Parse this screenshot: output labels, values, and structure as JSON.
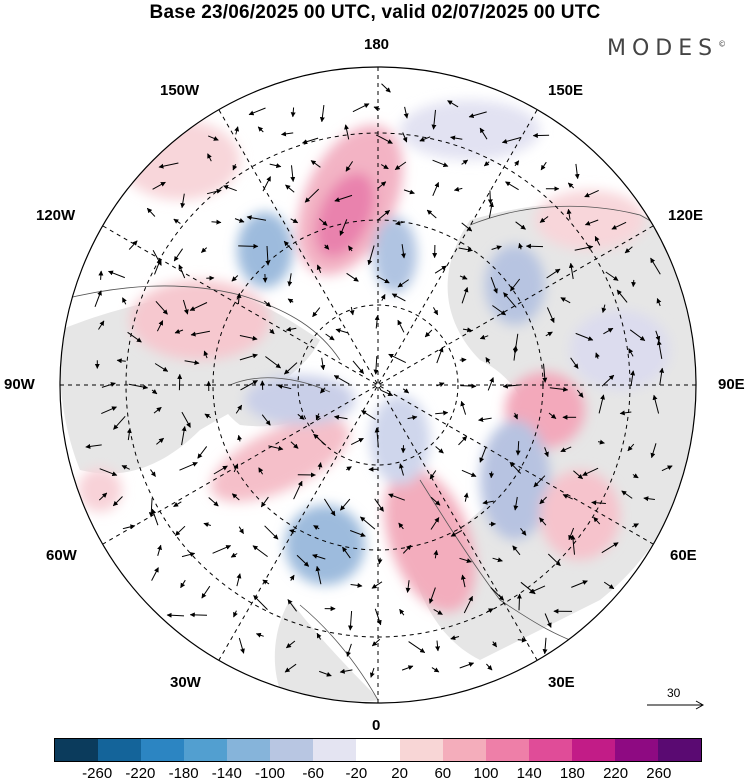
{
  "title": "Base 23/06/2025 00 UTC, valid 02/07/2025 00 UTC",
  "brand": "MODES",
  "brand_mark": "©",
  "longitude_labels": [
    "180",
    "150E",
    "120E",
    "90E",
    "60E",
    "30E",
    "0",
    "30W",
    "60W",
    "90W",
    "120W",
    "150W"
  ],
  "reference_vector": "30",
  "colorbar": {
    "ticks": [
      "-260",
      "-220",
      "-180",
      "-140",
      "-100",
      "-60",
      "-20",
      "20",
      "60",
      "100",
      "140",
      "180",
      "220",
      "260"
    ],
    "colors": [
      "#0b3b5c",
      "#14649a",
      "#2c85c2",
      "#529fd0",
      "#86b4da",
      "#b8c6e2",
      "#e4e4f2",
      "#ffffff",
      "#f8d6d6",
      "#f4adbb",
      "#ee7fa8",
      "#e04c98",
      "#c21c87",
      "#8e0a82",
      "#5a0a72"
    ]
  }
}
